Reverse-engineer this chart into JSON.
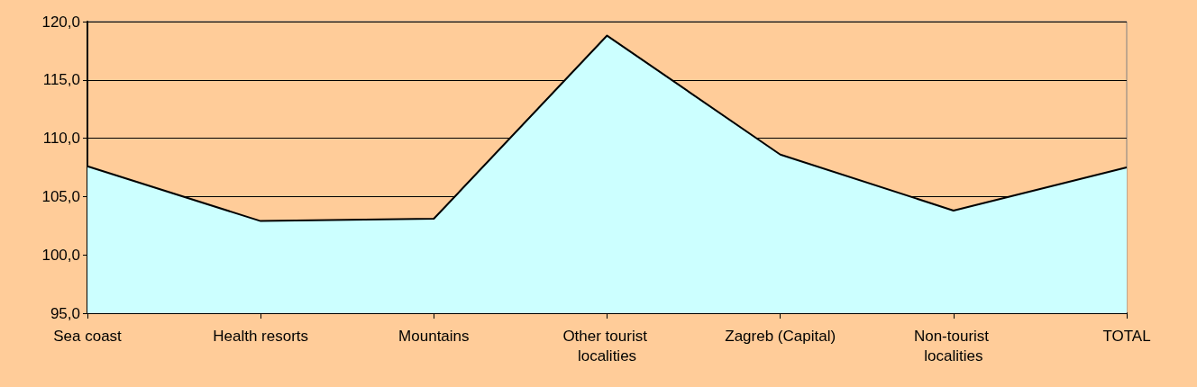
{
  "chart_data": {
    "type": "area",
    "categories": [
      "Sea coast",
      "Health resorts",
      "Mountains",
      "Other tourist localities",
      "Zagreb (Capital)",
      "Non-tourist localities",
      "TOTAL"
    ],
    "series": [
      {
        "color": "#ccffff",
        "values": [
          107.6,
          102.9,
          103.1,
          118.8,
          108.6,
          103.8,
          107.5
        ]
      }
    ],
    "ylim": [
      95,
      120
    ],
    "yticks": [
      {
        "value": 95,
        "label": "95,0"
      },
      {
        "value": 100,
        "label": "100,0"
      },
      {
        "value": 105,
        "label": "105,0"
      },
      {
        "value": 110,
        "label": "110,0"
      },
      {
        "value": 115,
        "label": "115,0"
      },
      {
        "value": 120,
        "label": "120,0"
      }
    ],
    "grid": "y",
    "marker": "none",
    "line_style": "solid"
  }
}
